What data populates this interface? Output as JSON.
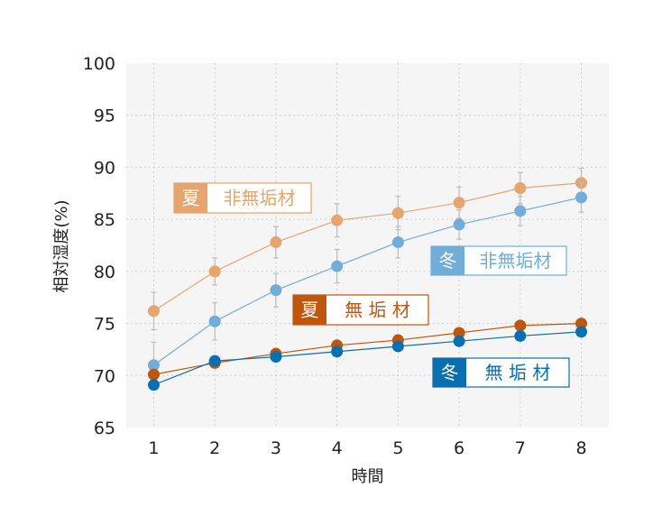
{
  "chart_data": {
    "type": "line",
    "xlabel": "時間",
    "ylabel": "相対湿度(%)",
    "x": [
      1,
      2,
      3,
      4,
      5,
      6,
      7,
      8
    ],
    "xlim": [
      0.55,
      8.45
    ],
    "ylim": [
      65,
      100
    ],
    "yticks": [
      65,
      70,
      75,
      80,
      85,
      90,
      95,
      100
    ],
    "grid": true,
    "series": [
      {
        "name": "夏非無垢材",
        "badge": "夏",
        "text": "非無垢材",
        "color": "#e6a46e",
        "values": [
          76.2,
          80.0,
          82.8,
          84.9,
          85.6,
          86.6,
          88.0,
          88.5
        ],
        "err": [
          1.8,
          1.3,
          1.5,
          1.6,
          1.6,
          1.5,
          1.5,
          1.4
        ]
      },
      {
        "name": "冬非無垢材",
        "badge": "冬",
        "text": "非無垢材",
        "color": "#72add8",
        "values": [
          71.0,
          75.2,
          78.2,
          80.5,
          82.8,
          84.5,
          85.8,
          87.1
        ],
        "err": [
          2.2,
          1.8,
          1.6,
          1.6,
          1.5,
          1.4,
          1.4,
          1.4
        ]
      },
      {
        "name": "夏無垢材",
        "badge": "夏",
        "text": "無 垢 材",
        "color": "#c0560d",
        "values": [
          70.1,
          71.2,
          72.1,
          72.9,
          73.4,
          74.1,
          74.8,
          75.0
        ],
        "err": [
          0,
          0,
          0,
          0,
          0,
          0,
          0,
          0
        ]
      },
      {
        "name": "冬無垢材",
        "badge": "冬",
        "text": "無 垢 材",
        "color": "#0a6fb0",
        "values": [
          69.1,
          71.4,
          71.8,
          72.3,
          72.8,
          73.3,
          73.8,
          74.2
        ],
        "err": [
          0,
          0,
          0,
          0,
          0,
          0,
          0,
          0
        ]
      }
    ]
  }
}
